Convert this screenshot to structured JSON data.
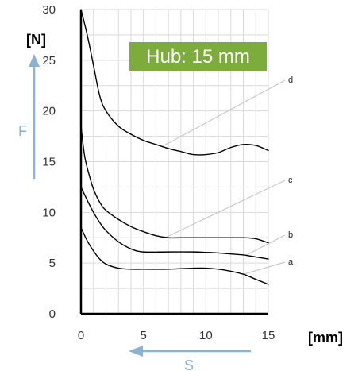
{
  "chart_data": {
    "type": "line",
    "y_unit": "[N]",
    "x_unit": "[mm]",
    "y_axis_name": "F",
    "x_axis_name": "S",
    "badge": "Hub: 15 mm",
    "xlim": [
      0,
      15
    ],
    "ylim": [
      0,
      30
    ],
    "x_ticks": [
      0,
      5,
      10,
      15
    ],
    "y_ticks": [
      0,
      5,
      10,
      15,
      20,
      25,
      30
    ],
    "grid": true,
    "colors": {
      "badge": "#7cac3c",
      "axis_arrow": "#8ab3d3",
      "curve": "#000000",
      "grid": "#d9d9d9",
      "leader": "#c8c8c8"
    },
    "series": [
      {
        "name": "a",
        "points": [
          [
            0,
            8.5
          ],
          [
            0.5,
            7.2
          ],
          [
            1,
            6.2
          ],
          [
            1.5,
            5.4
          ],
          [
            2,
            4.9
          ],
          [
            3,
            4.5
          ],
          [
            4,
            4.4
          ],
          [
            5,
            4.4
          ],
          [
            7,
            4.4
          ],
          [
            9,
            4.5
          ],
          [
            10,
            4.5
          ],
          [
            11,
            4.4
          ],
          [
            12,
            4.2
          ],
          [
            13,
            3.9
          ],
          [
            14,
            3.4
          ],
          [
            15,
            2.9
          ]
        ]
      },
      {
        "name": "b",
        "points": [
          [
            0,
            12.5
          ],
          [
            0.5,
            11.2
          ],
          [
            1,
            10.0
          ],
          [
            1.5,
            9.0
          ],
          [
            2,
            8.2
          ],
          [
            3,
            7.1
          ],
          [
            4,
            6.4
          ],
          [
            5,
            6.1
          ],
          [
            7,
            6.1
          ],
          [
            9,
            6.1
          ],
          [
            11,
            6.0
          ],
          [
            12,
            5.9
          ],
          [
            13,
            5.8
          ],
          [
            14,
            5.6
          ],
          [
            15,
            5.4
          ]
        ]
      },
      {
        "name": "c",
        "points": [
          [
            0,
            18.5
          ],
          [
            0.3,
            15.5
          ],
          [
            0.7,
            13.5
          ],
          [
            1,
            12.3
          ],
          [
            1.5,
            11.0
          ],
          [
            2,
            10.2
          ],
          [
            3,
            9.3
          ],
          [
            4,
            8.6
          ],
          [
            5,
            8.1
          ],
          [
            6,
            7.7
          ],
          [
            7,
            7.5
          ],
          [
            8,
            7.5
          ],
          [
            10,
            7.5
          ],
          [
            12,
            7.5
          ],
          [
            13,
            7.5
          ],
          [
            14,
            7.4
          ],
          [
            15,
            7.0
          ]
        ]
      },
      {
        "name": "d",
        "points": [
          [
            0,
            30.0
          ],
          [
            0.5,
            27.5
          ],
          [
            1,
            24.5
          ],
          [
            1.5,
            21.5
          ],
          [
            2,
            20.0
          ],
          [
            3,
            18.5
          ],
          [
            4,
            17.7
          ],
          [
            5,
            17.1
          ],
          [
            6,
            16.7
          ],
          [
            7,
            16.3
          ],
          [
            8,
            16.0
          ],
          [
            9,
            15.7
          ],
          [
            10,
            15.7
          ],
          [
            11,
            15.9
          ],
          [
            12,
            16.4
          ],
          [
            13,
            16.7
          ],
          [
            14,
            16.6
          ],
          [
            15,
            16.1
          ]
        ]
      }
    ]
  }
}
